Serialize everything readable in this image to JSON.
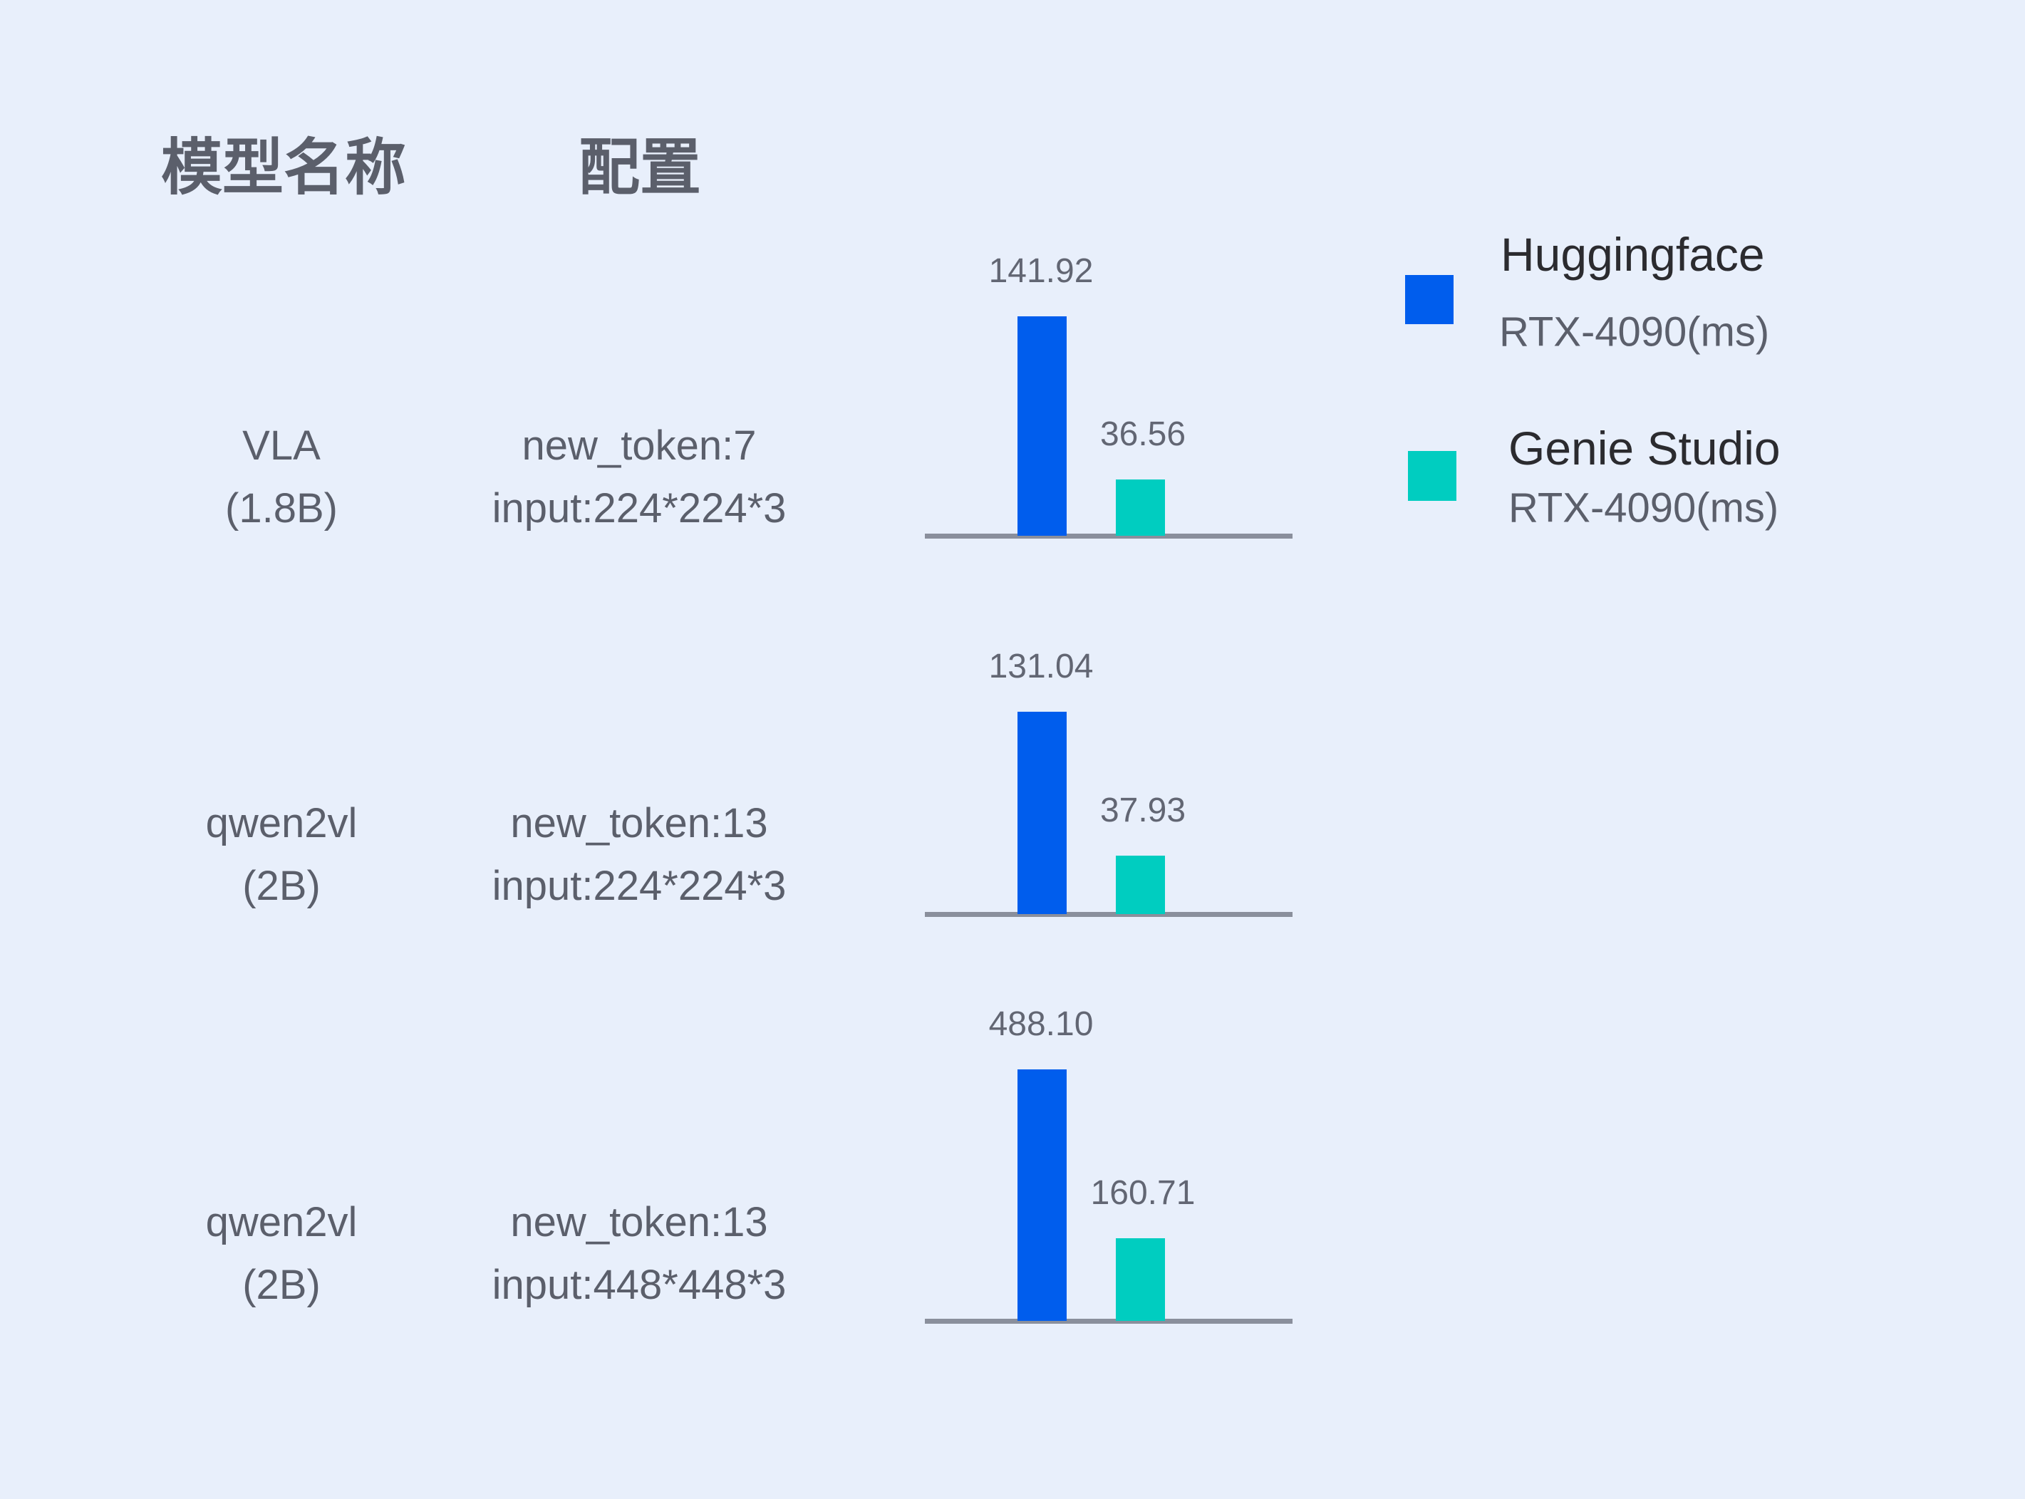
{
  "headers": {
    "model": "模型名称",
    "config": "配置"
  },
  "colors": {
    "huggingface": "#005ded",
    "genie": "#00cdc0",
    "axis": "#8a8f9c",
    "background": "#e8effb"
  },
  "legend": [
    {
      "name": "Huggingface",
      "sub": "RTX-4090(ms)"
    },
    {
      "name": "Genie Studio",
      "sub": "RTX-4090(ms)"
    }
  ],
  "chart_data": {
    "type": "bar",
    "rows": [
      {
        "model": "VLA",
        "size": "(1.8B)",
        "config1": "new_token:7",
        "config2": "input:224*224*3",
        "values": [
          141.92,
          36.56
        ],
        "labels": [
          "141.92",
          "36.56"
        ]
      },
      {
        "model": "qwen2vl",
        "size": "(2B)",
        "config1": "new_token:13",
        "config2": "input:224*224*3",
        "values": [
          131.04,
          37.93
        ],
        "labels": [
          "131.04",
          "37.93"
        ]
      },
      {
        "model": "qwen2vl",
        "size": "(2B)",
        "config1": "new_token:13",
        "config2": "input:448*448*3",
        "values": [
          488.1,
          160.71
        ],
        "labels": [
          "488.10",
          "160.71"
        ]
      }
    ],
    "series": [
      "Huggingface RTX-4090(ms)",
      "Genie Studio RTX-4090(ms)"
    ]
  }
}
